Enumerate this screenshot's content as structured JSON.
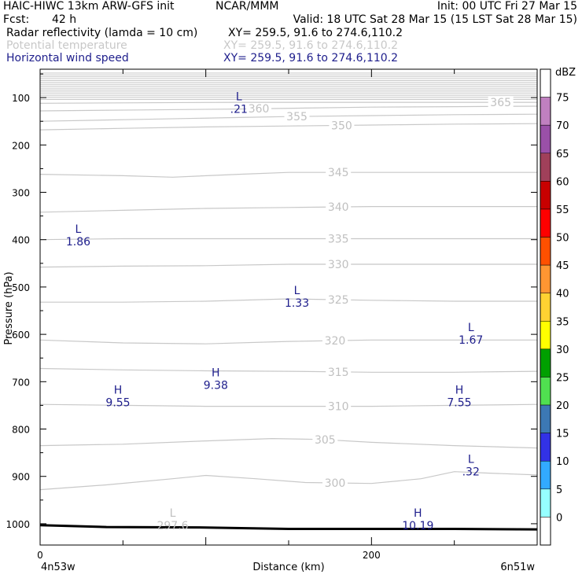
{
  "header": {
    "model": "HAIC-HIWC 13km ARW-GFS init",
    "org": "NCAR/MMM",
    "init": "Init: 00 UTC Fri 27 Mar 15",
    "fcst_label": "Fcst:",
    "fcst_value": "42 h",
    "valid": "Valid: 18 UTC Sat 28 Mar 15 (15 LST Sat 28 Mar 15)",
    "fields": [
      {
        "name": "Radar reflectivity (lamda = 10 cm)",
        "xy": "XY= 259.5, 91.6 to 274.6,110.2",
        "color": "#000000"
      },
      {
        "name": "Potential temperature",
        "xy": "XY= 259.5, 91.6 to 274.6,110.2",
        "color": "#c8c8c8"
      },
      {
        "name": "Horizontal wind speed",
        "xy": "XY= 259.5, 91.6 to 274.6,110.2",
        "color": "#1e1e8c"
      }
    ]
  },
  "chart_data": {
    "type": "cross-section",
    "ylabel": "Pressure (hPa)",
    "xlabel": "Distance (km)",
    "x_endpoints": [
      "4n53w",
      "6n51w"
    ],
    "xlim": [
      0,
      300
    ],
    "ylim": [
      1045,
      40
    ],
    "x_ticks": [
      0,
      200
    ],
    "y_ticks": [
      100,
      200,
      300,
      400,
      500,
      600,
      700,
      800,
      900,
      1000
    ],
    "ground_pressure": [
      [
        0,
        1003
      ],
      [
        40,
        1007
      ],
      [
        100,
        1008
      ],
      [
        150,
        1011
      ],
      [
        200,
        1011
      ],
      [
        250,
        1011
      ],
      [
        300,
        1012
      ]
    ],
    "theta_contours": [
      {
        "level": "300",
        "label_x": 178,
        "points": [
          [
            0,
            928
          ],
          [
            40,
            918
          ],
          [
            80,
            905
          ],
          [
            100,
            898
          ],
          [
            130,
            905
          ],
          [
            160,
            913
          ],
          [
            200,
            915
          ],
          [
            230,
            905
          ],
          [
            250,
            890
          ],
          [
            270,
            893
          ],
          [
            300,
            897
          ]
        ]
      },
      {
        "level": "305",
        "label_x": 172,
        "points": [
          [
            0,
            835
          ],
          [
            50,
            832
          ],
          [
            100,
            825
          ],
          [
            140,
            820
          ],
          [
            170,
            822
          ],
          [
            200,
            828
          ],
          [
            250,
            835
          ],
          [
            300,
            840
          ]
        ]
      },
      {
        "level": "310",
        "label_x": 180,
        "points": [
          [
            0,
            748
          ],
          [
            50,
            750
          ],
          [
            100,
            752
          ],
          [
            150,
            752
          ],
          [
            200,
            752
          ],
          [
            250,
            750
          ],
          [
            300,
            748
          ]
        ]
      },
      {
        "level": "315",
        "label_x": 180,
        "points": [
          [
            0,
            672
          ],
          [
            50,
            675
          ],
          [
            100,
            677
          ],
          [
            150,
            678
          ],
          [
            200,
            680
          ],
          [
            250,
            680
          ],
          [
            300,
            678
          ]
        ]
      },
      {
        "level": "320",
        "label_x": 178,
        "points": [
          [
            0,
            612
          ],
          [
            50,
            618
          ],
          [
            100,
            620
          ],
          [
            150,
            615
          ],
          [
            200,
            612
          ],
          [
            250,
            612
          ],
          [
            300,
            612
          ]
        ]
      },
      {
        "level": "325",
        "label_x": 180,
        "points": [
          [
            0,
            532
          ],
          [
            50,
            532
          ],
          [
            100,
            530
          ],
          [
            150,
            525
          ],
          [
            200,
            528
          ],
          [
            250,
            530
          ],
          [
            300,
            530
          ]
        ]
      },
      {
        "level": "330",
        "label_x": 180,
        "points": [
          [
            0,
            458
          ],
          [
            50,
            456
          ],
          [
            100,
            455
          ],
          [
            150,
            452
          ],
          [
            200,
            452
          ],
          [
            250,
            452
          ],
          [
            300,
            452
          ]
        ]
      },
      {
        "level": "335",
        "label_x": 180,
        "points": [
          [
            0,
            400
          ],
          [
            50,
            398
          ],
          [
            100,
            398
          ],
          [
            150,
            398
          ],
          [
            200,
            398
          ],
          [
            250,
            398
          ],
          [
            300,
            398
          ]
        ]
      },
      {
        "level": "340",
        "label_x": 180,
        "points": [
          [
            0,
            342
          ],
          [
            50,
            338
          ],
          [
            100,
            334
          ],
          [
            150,
            332
          ],
          [
            200,
            330
          ],
          [
            250,
            330
          ],
          [
            300,
            330
          ]
        ]
      },
      {
        "level": "345",
        "label_x": 180,
        "points": [
          [
            0,
            262
          ],
          [
            50,
            265
          ],
          [
            80,
            268
          ],
          [
            120,
            262
          ],
          [
            150,
            258
          ],
          [
            200,
            258
          ],
          [
            250,
            258
          ],
          [
            300,
            258
          ]
        ]
      },
      {
        "level": "350",
        "label_x": 182,
        "points": [
          [
            0,
            168
          ],
          [
            50,
            165
          ],
          [
            100,
            162
          ],
          [
            150,
            160
          ],
          [
            200,
            158
          ],
          [
            250,
            156
          ],
          [
            300,
            155
          ]
        ]
      },
      {
        "level": "355",
        "label_x": 155,
        "points": [
          [
            0,
            150
          ],
          [
            60,
            146
          ],
          [
            120,
            142
          ],
          [
            150,
            140
          ],
          [
            200,
            138
          ],
          [
            250,
            136
          ],
          [
            300,
            135
          ]
        ]
      },
      {
        "level": "360",
        "label_x": 132,
        "points": [
          [
            0,
            128
          ],
          [
            60,
            126
          ],
          [
            120,
            124
          ],
          [
            160,
            122
          ],
          [
            200,
            120
          ],
          [
            250,
            119
          ],
          [
            300,
            118
          ]
        ]
      },
      {
        "level": "365",
        "label_x": 278,
        "points": [
          [
            0,
            112
          ],
          [
            60,
            111
          ],
          [
            120,
            110
          ],
          [
            180,
            110
          ],
          [
            240,
            110
          ],
          [
            300,
            110
          ]
        ]
      }
    ],
    "theta_dense_top": {
      "from": 48,
      "to": 104,
      "step": 4
    },
    "extrema": [
      {
        "kind": "L",
        "value": ".21",
        "x": 120,
        "p": 112,
        "field": "wind"
      },
      {
        "kind": "L",
        "value": "1.86",
        "x": 23,
        "p": 392,
        "field": "wind"
      },
      {
        "kind": "L",
        "value": "1.33",
        "x": 155,
        "p": 522,
        "field": "wind"
      },
      {
        "kind": "L",
        "value": "1.67",
        "x": 260,
        "p": 600,
        "field": "wind"
      },
      {
        "kind": "H",
        "value": "9.38",
        "x": 106,
        "p": 695,
        "field": "wind"
      },
      {
        "kind": "H",
        "value": "9.55",
        "x": 47,
        "p": 732,
        "field": "wind"
      },
      {
        "kind": "H",
        "value": "7.55",
        "x": 253,
        "p": 732,
        "field": "wind"
      },
      {
        "kind": "L",
        "value": ".32",
        "x": 260,
        "p": 878,
        "field": "wind"
      },
      {
        "kind": "H",
        "value": "10.19",
        "x": 228,
        "p": 992,
        "field": "wind"
      },
      {
        "kind": "L",
        "value": "297.6",
        "x": 80,
        "p": 992,
        "field": "theta"
      }
    ]
  },
  "colorbar": {
    "unit": "dBZ",
    "ticks": [
      "75",
      "70",
      "65",
      "60",
      "55",
      "50",
      "45",
      "40",
      "35",
      "30",
      "25",
      "20",
      "15",
      "10",
      "5",
      "0"
    ],
    "colors": [
      "#ffffff",
      "#c080c0",
      "#9a50a8",
      "#a0405a",
      "#c80000",
      "#ff0000",
      "#ff5000",
      "#ff9632",
      "#ffd232",
      "#ffff00",
      "#00a000",
      "#50e050",
      "#3c78b4",
      "#3232e6",
      "#32aaff",
      "#96ffff",
      "#ffffff"
    ]
  }
}
